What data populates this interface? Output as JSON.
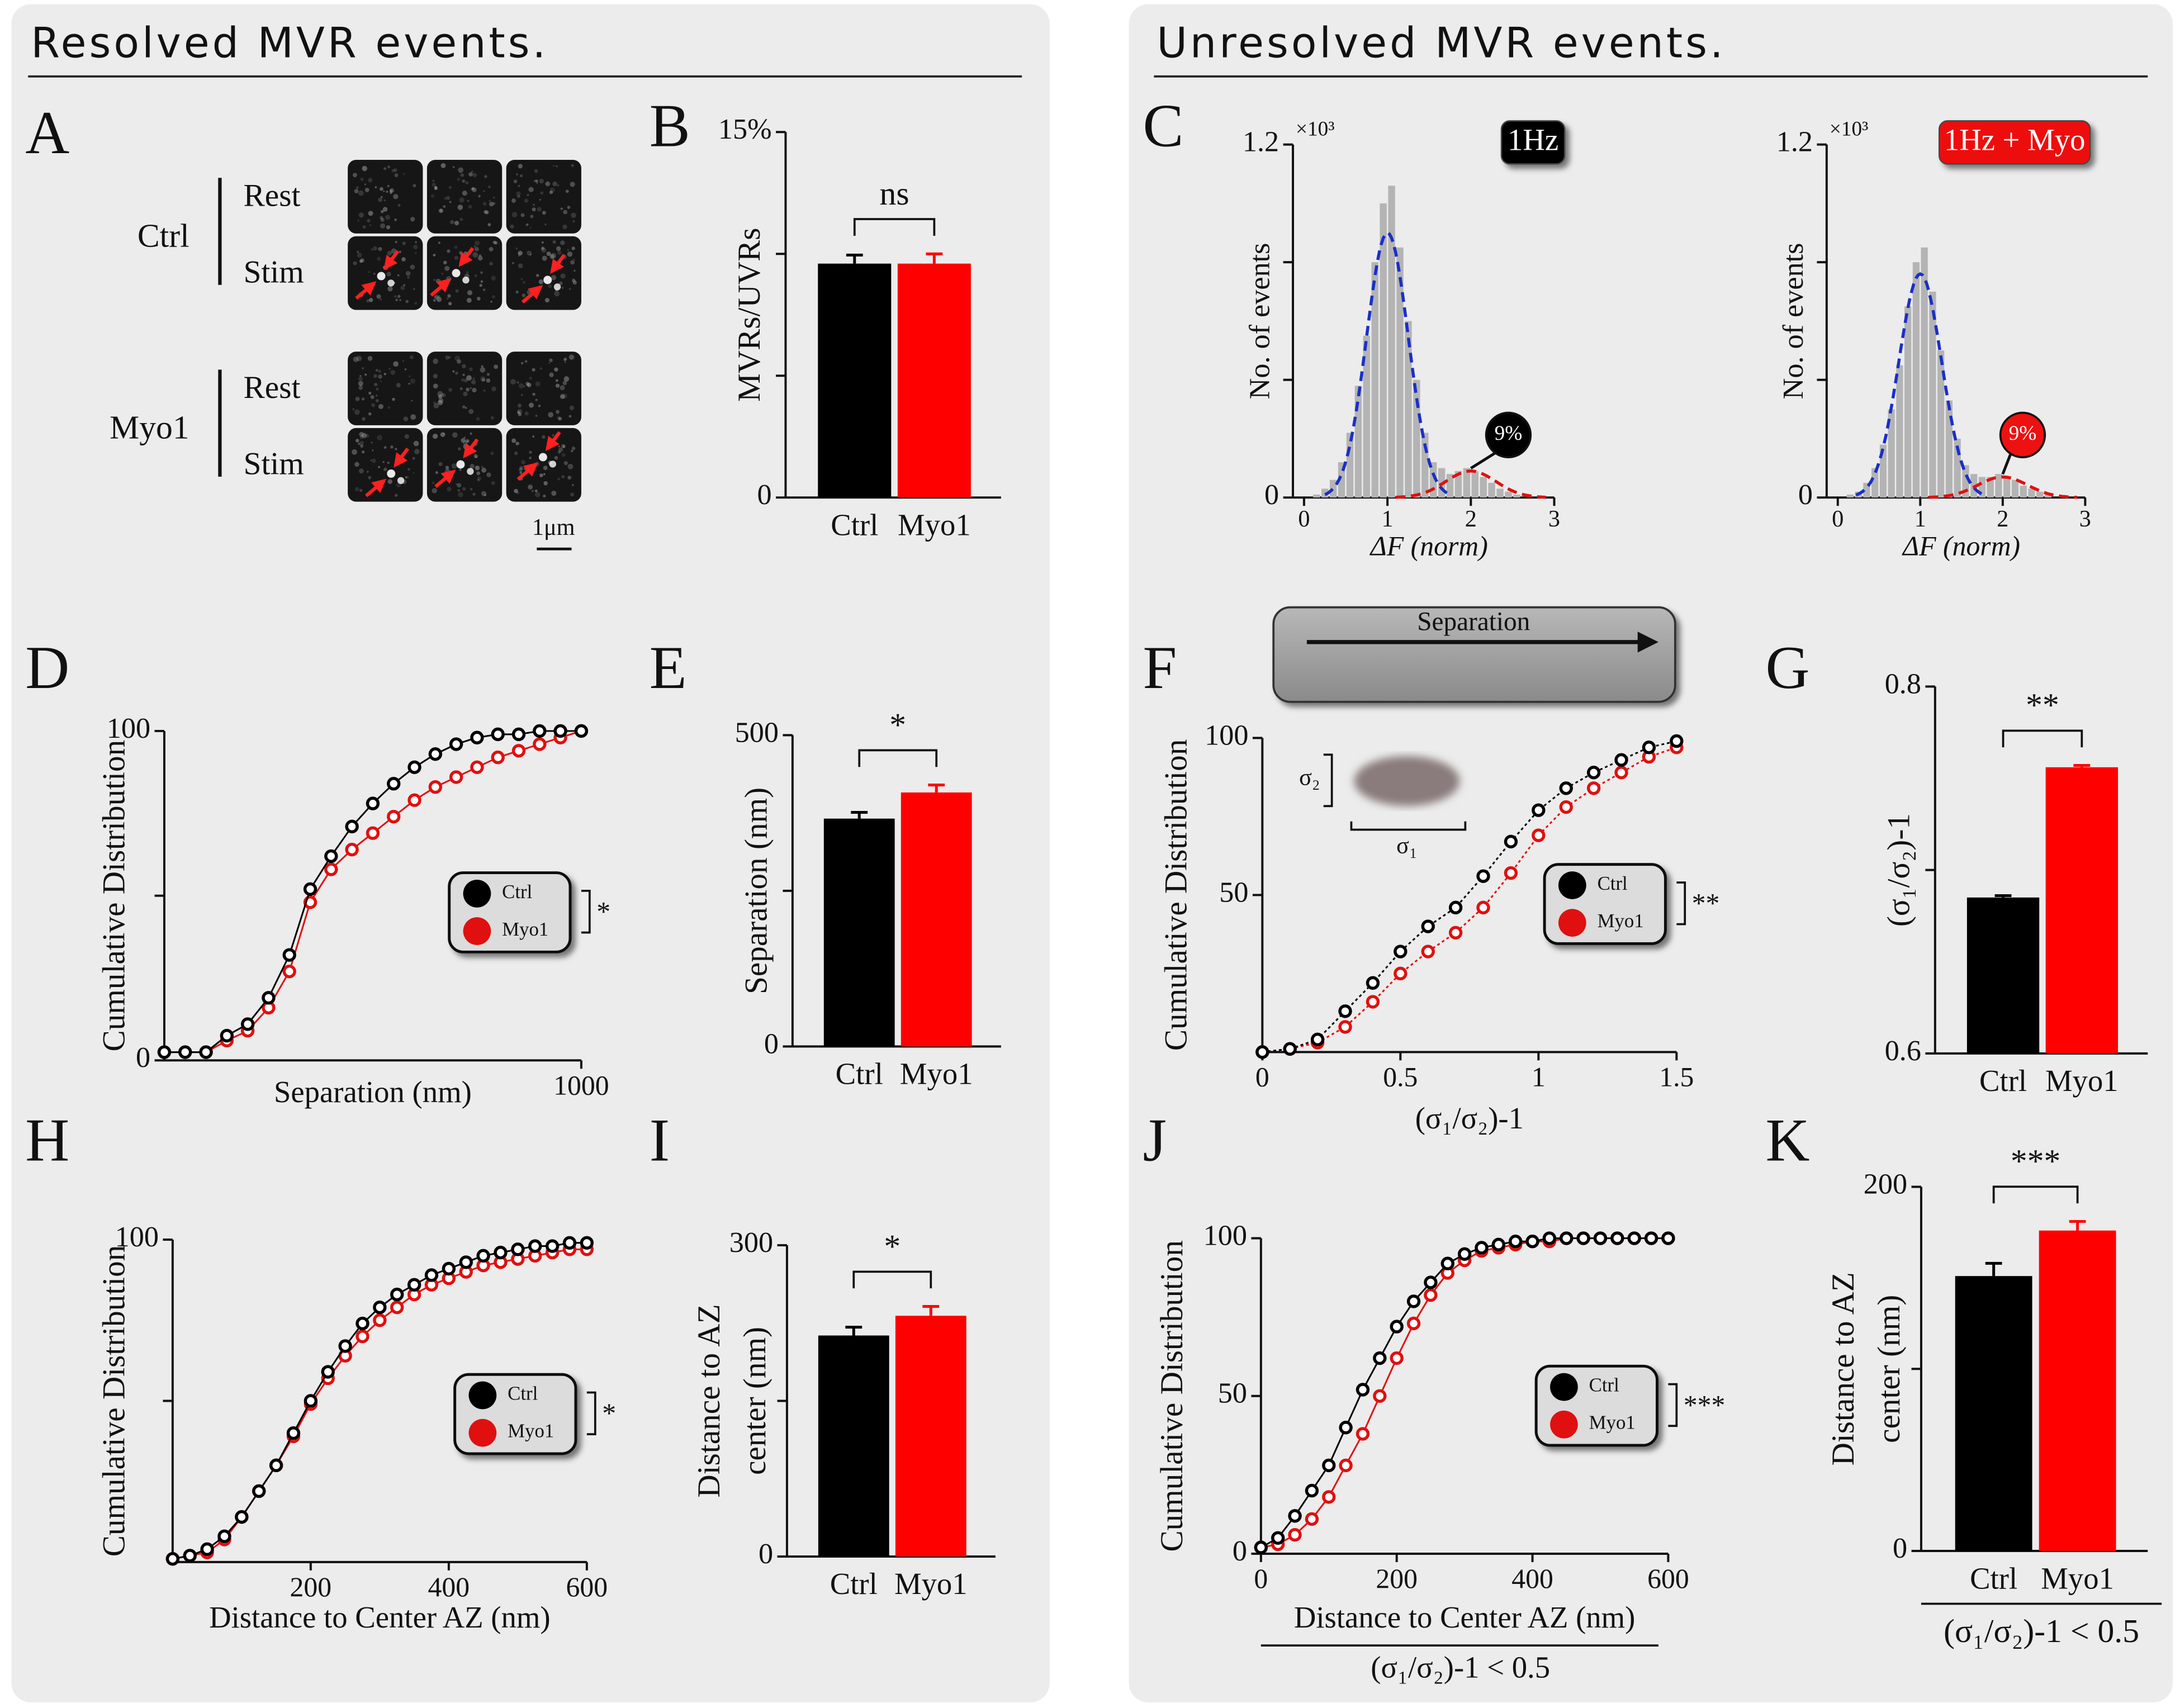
{
  "sections": [
    {
      "title": "Resolved MVR events."
    },
    {
      "title": "Unresolved MVR events."
    }
  ],
  "panel_a": {
    "letter": "A",
    "groups": [
      "Ctrl",
      "Myo1"
    ],
    "rows": [
      "Rest",
      "Stim"
    ],
    "scale_bar": "1μm"
  },
  "diagram_f": {
    "label": "Separation",
    "sigma_short": "σ₂",
    "sigma_long": "σ₁"
  },
  "chart_data": [
    {
      "panel": "B",
      "type": "bar",
      "categories": [
        "Ctrl",
        "Myo1"
      ],
      "values": [
        9.6,
        9.6
      ],
      "errors": [
        0.35,
        0.4
      ],
      "colors": [
        "#000000",
        "#ff0000"
      ],
      "ylim": [
        0,
        15
      ],
      "yticks": [
        0,
        {
          "value": 15,
          "label": "15%"
        }
      ],
      "minor_yticks": [
        5,
        10
      ],
      "ylabel": [
        "MVRs/UVRs"
      ],
      "significance": "ns"
    },
    {
      "panel": "C",
      "type": "histogram",
      "bins": [
        0.1,
        0.2,
        0.3,
        0.4,
        0.5,
        0.6,
        0.7,
        0.8,
        0.9,
        1.0,
        1.1,
        1.2,
        1.3,
        1.4,
        1.5,
        1.6,
        1.7,
        1.8,
        1.9,
        2.0,
        2.1,
        2.2,
        2.3,
        2.4,
        2.5,
        2.6
      ],
      "counts": [
        0.01,
        0.03,
        0.06,
        0.12,
        0.22,
        0.38,
        0.55,
        0.8,
        1.0,
        1.06,
        0.85,
        0.6,
        0.4,
        0.22,
        0.12,
        0.1,
        0.08,
        0.09,
        0.1,
        0.09,
        0.07,
        0.05,
        0.03,
        0.02,
        0.01
      ],
      "color": "#b4b4b4",
      "fits": [
        {
          "color": "#1a2fc8",
          "mean": 1.0,
          "sd": 0.25,
          "amplitude": 0.9
        },
        {
          "color": "#e01010",
          "mean": 2.0,
          "sd": 0.3,
          "amplitude": 0.09
        }
      ],
      "xlim": [
        0,
        3
      ],
      "xticks": [
        0,
        1,
        2,
        3
      ],
      "ylim": [
        0,
        1.2
      ],
      "yticks": [
        0,
        1.2
      ],
      "minor_yticks": [
        0.4,
        0.8
      ],
      "y_exponent_label": "×10³",
      "xlabel": "ΔF (norm)",
      "ylabel": [
        "No. of events"
      ],
      "badge": "1Hz",
      "badge_color": "#000000",
      "annotation": "9%"
    },
    {
      "type": "histogram",
      "bins": [
        0.1,
        0.2,
        0.3,
        0.4,
        0.5,
        0.6,
        0.7,
        0.8,
        0.9,
        1.0,
        1.1,
        1.2,
        1.3,
        1.4,
        1.5,
        1.6,
        1.7,
        1.8,
        1.9,
        2.0,
        2.1,
        2.2,
        2.3,
        2.4,
        2.5,
        2.6
      ],
      "counts": [
        0.01,
        0.02,
        0.05,
        0.1,
        0.18,
        0.3,
        0.45,
        0.65,
        0.8,
        0.85,
        0.7,
        0.5,
        0.33,
        0.2,
        0.11,
        0.08,
        0.07,
        0.07,
        0.08,
        0.07,
        0.06,
        0.04,
        0.03,
        0.02,
        0.01
      ],
      "color": "#b4b4b4",
      "fits": [
        {
          "color": "#1a2fc8",
          "mean": 1.0,
          "sd": 0.26,
          "amplitude": 0.76
        },
        {
          "color": "#e01010",
          "mean": 2.0,
          "sd": 0.3,
          "amplitude": 0.07
        }
      ],
      "xlim": [
        0,
        3
      ],
      "xticks": [
        0,
        1,
        2,
        3
      ],
      "ylim": [
        0,
        1.2
      ],
      "yticks": [
        0,
        1.2
      ],
      "minor_yticks": [
        0.4,
        0.8
      ],
      "y_exponent_label": "×10³",
      "xlabel": "ΔF (norm)",
      "ylabel": [
        "No. of events"
      ],
      "badge": "1Hz + Myo",
      "badge_color": "#ee1111",
      "annotation": "9%"
    },
    {
      "panel": "D",
      "type": "line",
      "x": [
        0,
        50,
        100,
        150,
        200,
        250,
        300,
        350,
        400,
        450,
        500,
        550,
        600,
        650,
        700,
        750,
        800,
        850,
        900,
        950,
        1000
      ],
      "series": [
        {
          "name": "Ctrl",
          "color": "#000000",
          "values": [
            2.5,
            2.5,
            2.5,
            7.5,
            11,
            19,
            32,
            52,
            62,
            71,
            78,
            84,
            89,
            93,
            96,
            98,
            99,
            99,
            100,
            100,
            100
          ]
        },
        {
          "name": "Myo1",
          "color": "#e01010",
          "values": [
            2.5,
            2.5,
            2.5,
            6,
            9,
            16,
            27,
            48,
            58,
            64,
            69,
            74,
            79,
            83,
            86,
            89,
            92,
            94,
            96,
            98,
            100
          ]
        }
      ],
      "xlim": [
        0,
        1000
      ],
      "xticks": [
        1000
      ],
      "ylim": [
        0,
        100
      ],
      "yticks": [
        0,
        100
      ],
      "minor_yticks": [
        50
      ],
      "xlabel": "Separation (nm)",
      "ylabel": [
        "Cumulative Distribution"
      ],
      "significance": "*"
    },
    {
      "panel": "E",
      "type": "bar",
      "categories": [
        "Ctrl",
        "Myo1"
      ],
      "values": [
        366,
        408
      ],
      "errors": [
        10,
        12
      ],
      "colors": [
        "#000000",
        "#ff0000"
      ],
      "ylim": [
        0,
        500
      ],
      "yticks": [
        0,
        500
      ],
      "minor_yticks": [
        250
      ],
      "ylabel": [
        "Separation (nm)"
      ],
      "significance": "*"
    },
    {
      "panel": "F",
      "type": "line",
      "x": [
        0,
        0.1,
        0.2,
        0.3,
        0.4,
        0.5,
        0.6,
        0.7,
        0.8,
        0.9,
        1.0,
        1.1,
        1.2,
        1.3,
        1.4,
        1.5
      ],
      "series": [
        {
          "name": "Ctrl",
          "color": "#000000",
          "values": [
            0,
            1,
            4,
            13,
            22,
            32,
            40,
            46,
            56,
            67,
            77,
            84,
            89,
            93,
            97,
            99
          ]
        },
        {
          "name": "Myo1",
          "color": "#e01010",
          "values": [
            0,
            1,
            3,
            8,
            16,
            25,
            32,
            38,
            46,
            57,
            69,
            78,
            84,
            89,
            94,
            97
          ]
        }
      ],
      "xlim": [
        0,
        1.5
      ],
      "xticks": [
        0,
        0.5,
        1,
        1.5
      ],
      "ylim": [
        0,
        100
      ],
      "yticks": [
        50,
        100
      ],
      "minor_yticks": [],
      "xlabel": "(σ₁/σ₂)-1",
      "ylabel": [
        "Cumulative Distribution"
      ],
      "significance": "**",
      "line_style": "dotted"
    },
    {
      "panel": "G",
      "type": "bar",
      "categories": [
        "Ctrl",
        "Myo1"
      ],
      "values": [
        0.685,
        0.756
      ],
      "errors": [
        0.001,
        0.001
      ],
      "colors": [
        "#000000",
        "#ff0000"
      ],
      "ylim": [
        0.6,
        0.8
      ],
      "yticks": [
        0.6,
        0.8
      ],
      "minor_yticks": [
        0.7
      ],
      "ylabel": [
        "(σ₁/σ₂)-1"
      ],
      "significance": "**"
    },
    {
      "panel": "H",
      "type": "line",
      "x": [
        0,
        25,
        50,
        75,
        100,
        125,
        150,
        175,
        200,
        225,
        250,
        275,
        300,
        325,
        350,
        375,
        400,
        425,
        450,
        475,
        500,
        525,
        550,
        575,
        600
      ],
      "series": [
        {
          "name": "Ctrl",
          "color": "#000000",
          "values": [
            1,
            2,
            4,
            8,
            14,
            22,
            30,
            40,
            50,
            59,
            67,
            74,
            79,
            83,
            86,
            89,
            91,
            93,
            95,
            96,
            97,
            98,
            98,
            99,
            99
          ]
        },
        {
          "name": "Myo1",
          "color": "#e01010",
          "values": [
            1,
            2,
            3,
            7,
            14,
            22,
            30,
            39,
            49,
            57,
            64,
            70,
            75,
            79,
            83,
            86,
            88,
            90,
            92,
            93,
            94,
            95,
            96,
            97,
            97
          ]
        }
      ],
      "xlim": [
        0,
        600
      ],
      "xticks": [
        200,
        400,
        600
      ],
      "ylim": [
        0,
        100
      ],
      "yticks": [
        100
      ],
      "minor_yticks": [
        50
      ],
      "xlabel": "Distance to Center AZ (nm)",
      "ylabel": [
        "Cumulative Distribution"
      ],
      "significance": "*"
    },
    {
      "panel": "I",
      "type": "bar",
      "categories": [
        "Ctrl",
        "Myo1"
      ],
      "values": [
        213,
        232
      ],
      "errors": [
        8,
        9
      ],
      "colors": [
        "#000000",
        "#ff0000"
      ],
      "ylim": [
        0,
        300
      ],
      "yticks": [
        0,
        300
      ],
      "minor_yticks": [
        150
      ],
      "ylabel": [
        "Distance to AZ",
        "center (nm)"
      ],
      "significance": "*"
    },
    {
      "panel": "J",
      "type": "line",
      "x": [
        0,
        25,
        50,
        75,
        100,
        125,
        150,
        175,
        200,
        225,
        250,
        275,
        300,
        325,
        350,
        375,
        400,
        425,
        450,
        475,
        500,
        525,
        550,
        575,
        600
      ],
      "series": [
        {
          "name": "Ctrl",
          "color": "#000000",
          "values": [
            2,
            5,
            12,
            20,
            28,
            40,
            52,
            62,
            72,
            80,
            86,
            92,
            95,
            97,
            98,
            99,
            99,
            100,
            100,
            100,
            100,
            100,
            100,
            100,
            100
          ]
        },
        {
          "name": "Myo1",
          "color": "#e01010",
          "values": [
            2,
            3,
            6,
            11,
            18,
            28,
            38,
            50,
            62,
            73,
            82,
            89,
            93,
            96,
            97,
            98,
            99,
            99,
            100,
            100,
            100,
            100,
            100,
            100,
            100
          ]
        }
      ],
      "xlim": [
        0,
        600
      ],
      "xticks": [
        0,
        200,
        400,
        600
      ],
      "ylim": [
        0,
        100
      ],
      "yticks": [
        0,
        50,
        100
      ],
      "minor_yticks": [],
      "xlabel": "Distance to Center AZ (nm)",
      "subtitle": "(σ₁/σ₂)-1 < 0.5",
      "ylabel": [
        "Cumulative Distribution"
      ],
      "significance": "***"
    },
    {
      "panel": "K",
      "type": "bar",
      "categories": [
        "Ctrl",
        "Myo1"
      ],
      "values": [
        151,
        176
      ],
      "errors": [
        7,
        5
      ],
      "colors": [
        "#000000",
        "#ff0000"
      ],
      "ylim": [
        0,
        200
      ],
      "yticks": [
        0,
        200
      ],
      "minor_yticks": [
        100
      ],
      "ylabel": [
        "Distance to AZ",
        "center (nm)"
      ],
      "significance": "***",
      "subtitle": "(σ₁/σ₂)-1 < 0.5"
    }
  ]
}
